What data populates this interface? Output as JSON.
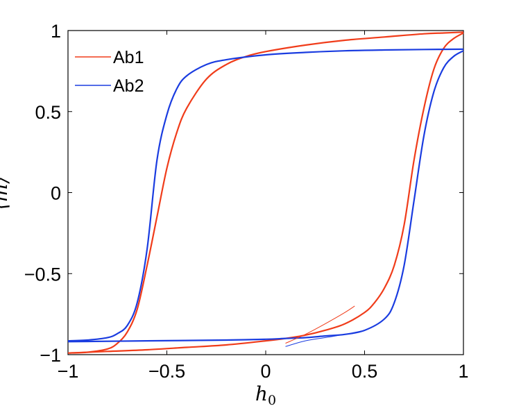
{
  "chart_data": {
    "type": "line",
    "xlabel": "h_0",
    "ylabel": "⟨m⟩",
    "xlim": [
      -1,
      1
    ],
    "ylim": [
      -1,
      1
    ],
    "x_ticks": [
      -1,
      -0.5,
      0,
      0.5,
      1
    ],
    "x_tick_labels": [
      "−1",
      "−0.5",
      "0",
      "0.5",
      "1"
    ],
    "y_ticks": [
      -1,
      -0.5,
      0,
      0.5,
      1
    ],
    "y_tick_labels": [
      "−1",
      "−0.5",
      "0",
      "0.5",
      "1"
    ],
    "grid": false,
    "legend_position": "top-left",
    "series": [
      {
        "name": "Ab1",
        "color": "#f03c1a",
        "descending": {
          "x": [
            1.0,
            0.9,
            0.8,
            0.6,
            0.4,
            0.2,
            0.0,
            -0.1,
            -0.2,
            -0.3,
            -0.4,
            -0.45,
            -0.5,
            -0.55,
            -0.6,
            -0.65,
            -0.7,
            -0.75,
            -0.8,
            -0.9,
            -1.0
          ],
          "y": [
            0.99,
            0.985,
            0.98,
            0.96,
            0.94,
            0.91,
            0.87,
            0.84,
            0.79,
            0.7,
            0.52,
            0.37,
            0.15,
            -0.15,
            -0.45,
            -0.72,
            -0.86,
            -0.93,
            -0.965,
            -0.985,
            -0.99
          ]
        },
        "ascending": {
          "x": [
            -1.0,
            -0.8,
            -0.6,
            -0.4,
            -0.2,
            0.0,
            0.1,
            0.2,
            0.3,
            0.4,
            0.5,
            0.55,
            0.6,
            0.65,
            0.7,
            0.75,
            0.8,
            0.85,
            0.9,
            0.95,
            1.0
          ],
          "y": [
            -0.99,
            -0.98,
            -0.97,
            -0.955,
            -0.94,
            -0.915,
            -0.9,
            -0.88,
            -0.85,
            -0.81,
            -0.74,
            -0.68,
            -0.59,
            -0.45,
            -0.2,
            0.2,
            0.52,
            0.76,
            0.89,
            0.95,
            0.985
          ]
        }
      },
      {
        "name": "Ab2",
        "color": "#1a3ce0",
        "descending": {
          "x": [
            1.0,
            0.8,
            0.6,
            0.4,
            0.2,
            0.0,
            -0.2,
            -0.3,
            -0.4,
            -0.45,
            -0.5,
            -0.55,
            -0.6,
            -0.65,
            -0.7,
            -0.75,
            -0.8,
            -0.9,
            -1.0
          ],
          "y": [
            0.885,
            0.883,
            0.88,
            0.875,
            0.865,
            0.85,
            0.82,
            0.79,
            0.72,
            0.64,
            0.48,
            0.2,
            -0.35,
            -0.68,
            -0.82,
            -0.87,
            -0.895,
            -0.91,
            -0.915
          ]
        },
        "ascending": {
          "x": [
            -1.0,
            -0.6,
            -0.2,
            0.0,
            0.1,
            0.2,
            0.3,
            0.4,
            0.5,
            0.6,
            0.65,
            0.7,
            0.75,
            0.8,
            0.85,
            0.9,
            0.95,
            1.0
          ],
          "y": [
            -0.92,
            -0.915,
            -0.91,
            -0.905,
            -0.9,
            -0.895,
            -0.885,
            -0.875,
            -0.85,
            -0.78,
            -0.68,
            -0.45,
            -0.05,
            0.35,
            0.62,
            0.77,
            0.84,
            0.875
          ]
        }
      }
    ],
    "minor_branches": [
      {
        "series": "Ab1",
        "x": [
          0.1,
          0.2,
          0.3,
          0.4,
          0.45
        ],
        "y": [
          -0.93,
          -0.875,
          -0.81,
          -0.74,
          -0.7
        ]
      },
      {
        "series": "Ab2",
        "x": [
          0.1,
          0.2,
          0.3,
          0.4,
          0.5
        ],
        "y": [
          -0.95,
          -0.915,
          -0.895,
          -0.875,
          -0.85
        ]
      }
    ]
  }
}
